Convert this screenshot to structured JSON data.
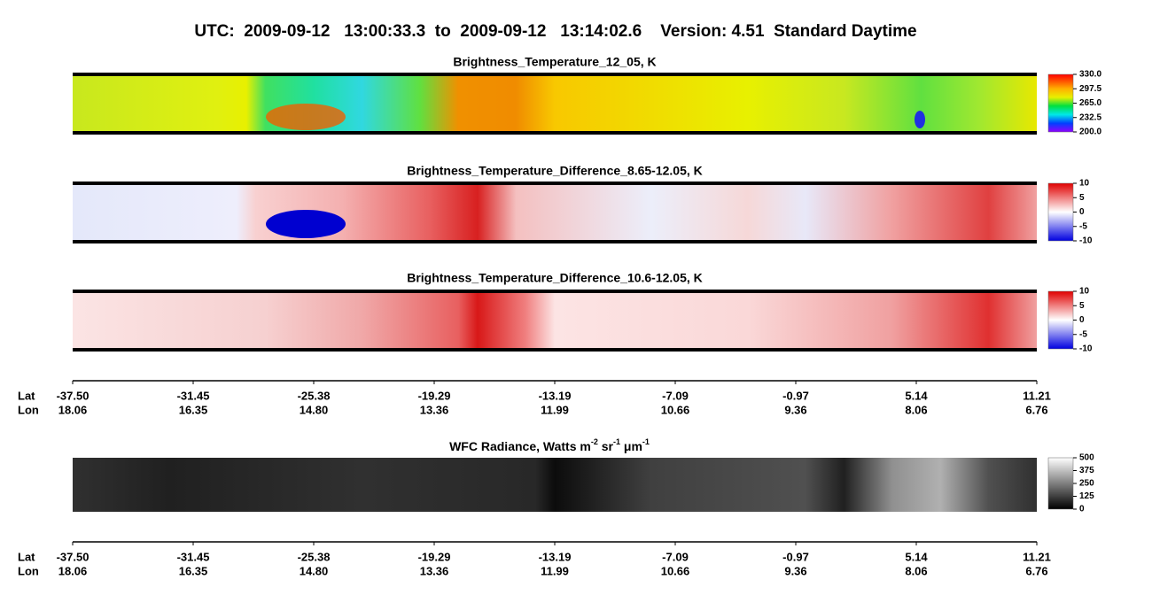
{
  "header": {
    "title": "UTC:  2009-09-12   13:00:33.3  to  2009-09-12   13:14:02.6    Version: 4.51  Standard Daytime"
  },
  "panels": [
    {
      "title": "Brightness_Temperature_12_05, K",
      "colorbar": [
        "330.0",
        "297.5",
        "265.0",
        "232.5",
        "200.0"
      ]
    },
    {
      "title": "Brightness_Temperature_Difference_8.65-12.05, K",
      "colorbar": [
        "10",
        "5",
        "0",
        "-5",
        "-10"
      ]
    },
    {
      "title": "Brightness_Temperature_Difference_10.6-12.05, K",
      "colorbar": [
        "10",
        "5",
        "0",
        "-5",
        "-10"
      ]
    }
  ],
  "wfc": {
    "title_parts": [
      "WFC Radiance, Watts m",
      "-2",
      " sr",
      "-1",
      " μm",
      "-1"
    ],
    "colorbar": [
      "500",
      "375",
      "250",
      "125",
      "0"
    ]
  },
  "axes": [
    {
      "lat_label": "Lat",
      "lon_label": "Lon",
      "lat": [
        "-37.50",
        "-31.45",
        "-25.38",
        "-19.29",
        "-13.19",
        "-7.09",
        "-0.97",
        "5.14",
        "11.21"
      ],
      "lon": [
        "18.06",
        "16.35",
        "14.80",
        "13.36",
        "11.99",
        "10.66",
        "9.36",
        "8.06",
        "6.76"
      ]
    },
    {
      "lat_label": "Lat",
      "lon_label": "Lon",
      "lat": [
        "-37.50",
        "-31.45",
        "-25.38",
        "-19.29",
        "-13.19",
        "-7.09",
        "-0.97",
        "5.14",
        "11.21"
      ],
      "lon": [
        "18.06",
        "16.35",
        "14.80",
        "13.36",
        "11.99",
        "10.66",
        "9.36",
        "8.06",
        "6.76"
      ]
    }
  ]
}
